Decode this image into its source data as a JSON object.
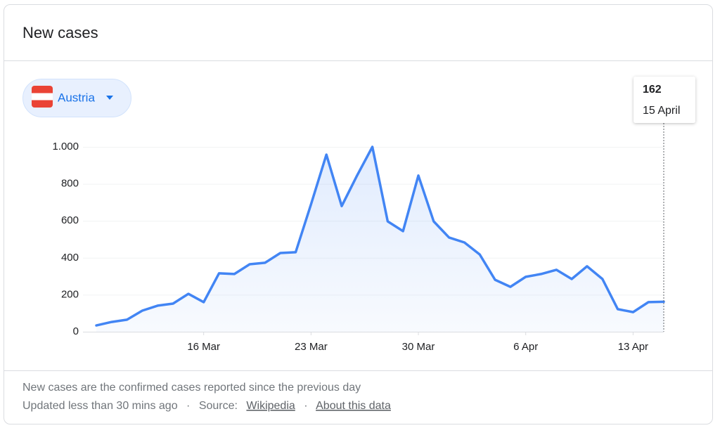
{
  "header": {
    "title": "New cases"
  },
  "selector": {
    "label": "Austria"
  },
  "chart_data": {
    "type": "line",
    "categories": [
      null,
      null,
      null,
      null,
      null,
      null,
      null,
      "16 Mar",
      null,
      null,
      null,
      null,
      null,
      null,
      "23 Mar",
      null,
      null,
      null,
      null,
      null,
      null,
      "30 Mar",
      null,
      null,
      null,
      null,
      null,
      null,
      "6 Apr",
      null,
      null,
      null,
      null,
      null,
      null,
      "13 Apr",
      null,
      null
    ],
    "series": [
      {
        "name": "New cases",
        "color": "#4285f4",
        "values": [
          34,
          53,
          65,
          114,
          141,
          152,
          205,
          160,
          316,
          312,
          365,
          373,
          426,
          430,
          690,
          958,
          680,
          845,
          1000,
          597,
          544,
          845,
          597,
          510,
          483,
          418,
          281,
          243,
          297,
          312,
          335,
          285,
          354,
          285,
          122,
          106,
          160,
          162
        ]
      }
    ],
    "ylim": [
      0,
      1000
    ],
    "yticks": [
      0,
      200,
      400,
      600,
      800,
      {
        "value": 1000,
        "label": "1.000"
      }
    ],
    "grid": true,
    "tooltip": {
      "value": 162,
      "label": "15 April"
    }
  },
  "footer": {
    "note": "New cases are the confirmed cases reported since the previous day",
    "updated": "Updated less than 30 mins ago",
    "separator": "·",
    "source_label": "Source:",
    "source_link": "Wikipedia",
    "about": "About this data"
  }
}
